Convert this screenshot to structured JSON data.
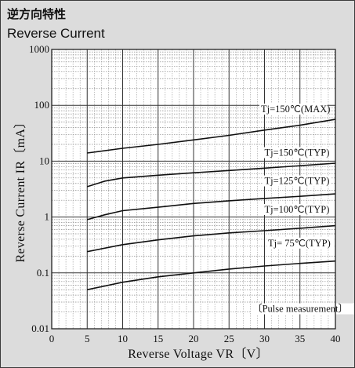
{
  "header": {
    "title_jp": "逆方向特性",
    "title_en": "Reverse Current"
  },
  "chart_data": {
    "type": "line",
    "xlabel": "Reverse Voltage  VR〔V〕",
    "ylabel": "Reverse Current  IR〔mA〕",
    "xlim": [
      0,
      40
    ],
    "ylim": [
      0.01,
      1000
    ],
    "y_scale": "log",
    "x_ticks": [
      0,
      5,
      10,
      15,
      20,
      25,
      30,
      35,
      40
    ],
    "y_ticks": [
      {
        "value": 0.01,
        "label": "0.01"
      },
      {
        "value": 0.1,
        "label": "0.1"
      },
      {
        "value": 1,
        "label": "1"
      },
      {
        "value": 10,
        "label": "10"
      },
      {
        "value": 100,
        "label": "100"
      },
      {
        "value": 1000,
        "label": "1000"
      }
    ],
    "grid": true,
    "series": [
      {
        "name": "Tj=150℃(MAX)",
        "x": [
          5,
          10,
          15,
          20,
          25,
          30,
          35,
          40
        ],
        "values": [
          14,
          17,
          20,
          24,
          29,
          36,
          44,
          56
        ]
      },
      {
        "name": "Tj=150℃(TYP)",
        "x": [
          5,
          7.5,
          10,
          15,
          20,
          25,
          30,
          35,
          40
        ],
        "values": [
          3.5,
          4.4,
          5.0,
          5.6,
          6.2,
          6.8,
          7.5,
          8.3,
          9.2
        ]
      },
      {
        "name": "Tj=125℃(TYP)",
        "x": [
          5,
          7.5,
          10,
          15,
          20,
          25,
          30,
          35,
          40
        ],
        "values": [
          0.9,
          1.1,
          1.3,
          1.5,
          1.75,
          1.95,
          2.15,
          2.35,
          2.6
        ]
      },
      {
        "name": "Tj=100℃(TYP)",
        "x": [
          5,
          10,
          15,
          20,
          25,
          30,
          35,
          40
        ],
        "values": [
          0.24,
          0.32,
          0.39,
          0.46,
          0.52,
          0.57,
          0.63,
          0.7
        ]
      },
      {
        "name": "Tj= 75℃(TYP)",
        "x": [
          5,
          10,
          15,
          20,
          25,
          30,
          35,
          40
        ],
        "values": [
          0.05,
          0.068,
          0.085,
          0.1,
          0.117,
          0.133,
          0.148,
          0.163
        ]
      }
    ],
    "series_labels": [
      {
        "text": "Tj=150℃(MAX)",
        "x": 29.5,
        "y": 75
      },
      {
        "text": "Tj=150℃(TYP)",
        "x": 30,
        "y": 12.5
      },
      {
        "text": "Tj=125℃(TYP)",
        "x": 30,
        "y": 3.9
      },
      {
        "text": "Tj=100℃(TYP)",
        "x": 30,
        "y": 1.2
      },
      {
        "text": "Tj= 75℃(TYP)",
        "x": 30.5,
        "y": 0.3
      }
    ],
    "annotation": {
      "text": "〔Pulse measurement〕",
      "x": 28.3,
      "y": 0.02
    }
  }
}
